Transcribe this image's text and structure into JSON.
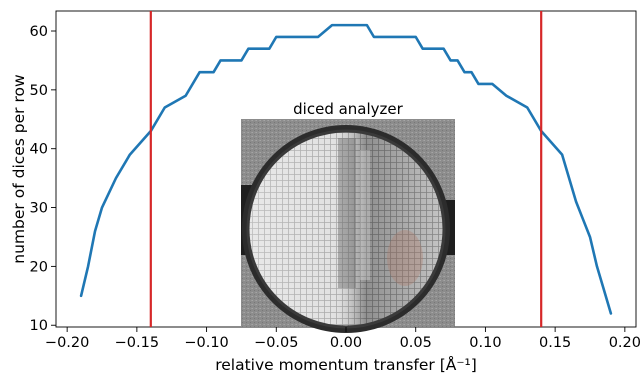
{
  "chart_data": {
    "type": "line",
    "xlabel": "relative momentum transfer [Å⁻¹]",
    "ylabel": "number of dices per row",
    "xlim": [
      -0.208,
      0.208
    ],
    "ylim": [
      9.7,
      63.4
    ],
    "xticks": [
      -0.2,
      -0.15,
      -0.1,
      -0.05,
      0.0,
      0.05,
      0.1,
      0.15,
      0.2
    ],
    "xtick_labels": [
      "−0.20",
      "−0.15",
      "−0.10",
      "−0.05",
      "0.00",
      "0.05",
      "0.10",
      "0.15",
      "0.20"
    ],
    "yticks": [
      10,
      20,
      30,
      40,
      50,
      60
    ],
    "ytick_labels": [
      "10",
      "20",
      "30",
      "40",
      "50",
      "60"
    ],
    "grid": false,
    "series": [
      {
        "color": "#1f77b4",
        "x": [
          -0.19,
          -0.185,
          -0.18,
          -0.175,
          -0.165,
          -0.155,
          -0.14,
          -0.13,
          -0.115,
          -0.105,
          -0.1,
          -0.095,
          -0.09,
          -0.08,
          -0.075,
          -0.07,
          -0.06,
          -0.055,
          -0.05,
          -0.03,
          -0.025,
          -0.02,
          -0.01,
          0.0,
          0.01,
          0.015,
          0.02,
          0.045,
          0.05,
          0.055,
          0.065,
          0.07,
          0.075,
          0.08,
          0.085,
          0.09,
          0.095,
          0.1,
          0.105,
          0.115,
          0.13,
          0.14,
          0.155,
          0.16,
          0.165,
          0.17,
          0.175,
          0.18,
          0.185,
          0.19
        ],
        "y": [
          15,
          20,
          26,
          30,
          35,
          39,
          43,
          47,
          49,
          53,
          53,
          53,
          55,
          55,
          55,
          57,
          57,
          57,
          59,
          59,
          59,
          59,
          61,
          61,
          61,
          61,
          59,
          59,
          59,
          57,
          57,
          57,
          55,
          55,
          53,
          53,
          51,
          51,
          51,
          49,
          47,
          43,
          39,
          35,
          31,
          28,
          25,
          20,
          16,
          12
        ]
      }
    ],
    "vlines": [
      {
        "x": -0.14,
        "color": "#d62728"
      },
      {
        "x": 0.14,
        "color": "#d62728"
      }
    ],
    "inset": {
      "title": "diced analyzer",
      "image": "photo of a circular diced crystal analyzer"
    }
  }
}
